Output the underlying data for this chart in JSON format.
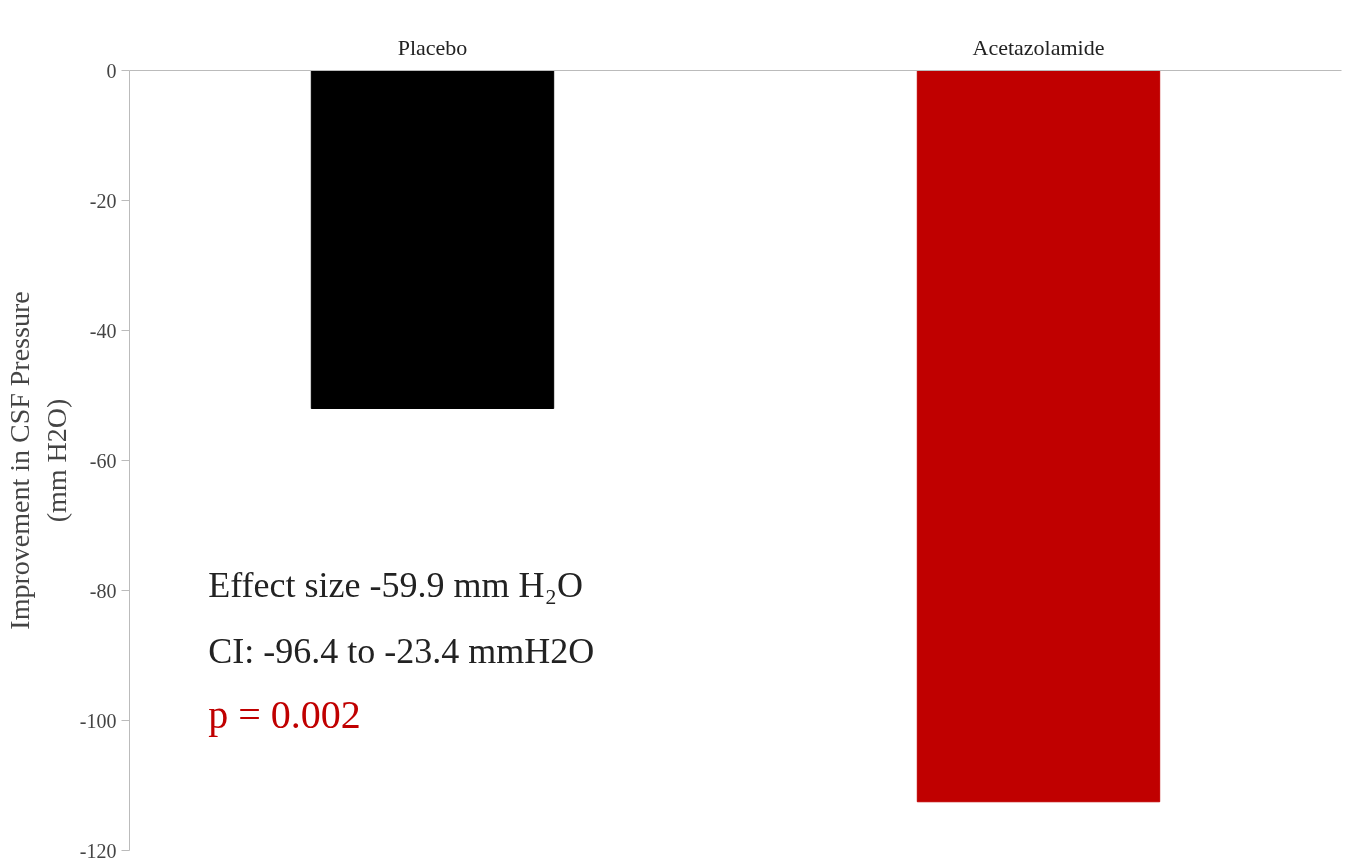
{
  "chart_data": {
    "type": "bar",
    "categories": [
      "Placebo",
      "Acetazolamide"
    ],
    "values": [
      -52,
      -112.5
    ],
    "colors": [
      "#000000",
      "#c00000"
    ],
    "ylabel": "Improvement in CSF Pressure\n(mm H2O)",
    "ylim": [
      -120,
      0
    ],
    "yticks": [
      0,
      -20,
      -40,
      -60,
      -80,
      -100,
      -120
    ],
    "grid": false,
    "annotations": [
      {
        "text": "Effect size -59.9 mm H₂O"
      },
      {
        "text": "CI: -96.4 to -23.4 mmH2O"
      },
      {
        "text": "p = 0.002"
      }
    ]
  }
}
